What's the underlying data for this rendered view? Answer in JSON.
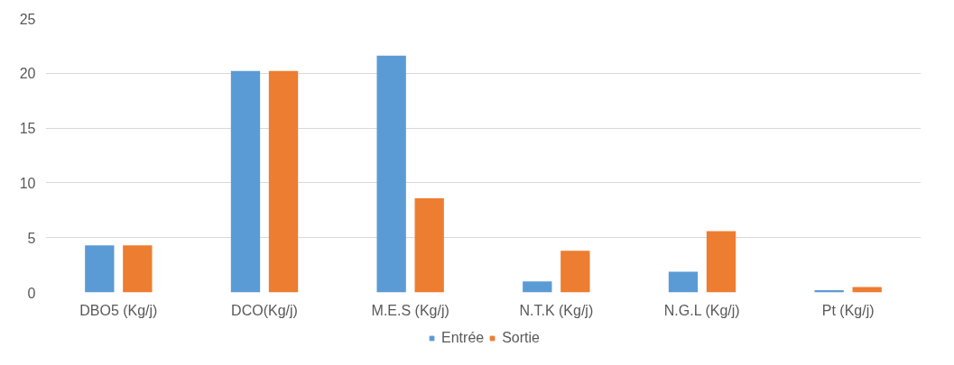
{
  "chart_data": {
    "type": "bar",
    "categories": [
      "DBO5 (Kg/j)",
      "DCO(Kg/j)",
      "M.E.S (Kg/j)",
      "N.T.K (Kg/j)",
      "N.G.L (Kg/j)",
      "Pt (Kg/j)"
    ],
    "series": [
      {
        "name": "Entrée",
        "color": "#5b9bd5",
        "values": [
          4.3,
          20.2,
          21.6,
          1.0,
          1.9,
          0.2
        ]
      },
      {
        "name": "Sortie",
        "color": "#ed7d31",
        "values": [
          4.3,
          20.2,
          8.6,
          3.8,
          5.6,
          0.5
        ]
      }
    ],
    "ylim": [
      0,
      25
    ],
    "yticks": [
      0,
      5,
      10,
      15,
      20,
      25
    ],
    "grid": "y",
    "legend": "bottom"
  }
}
